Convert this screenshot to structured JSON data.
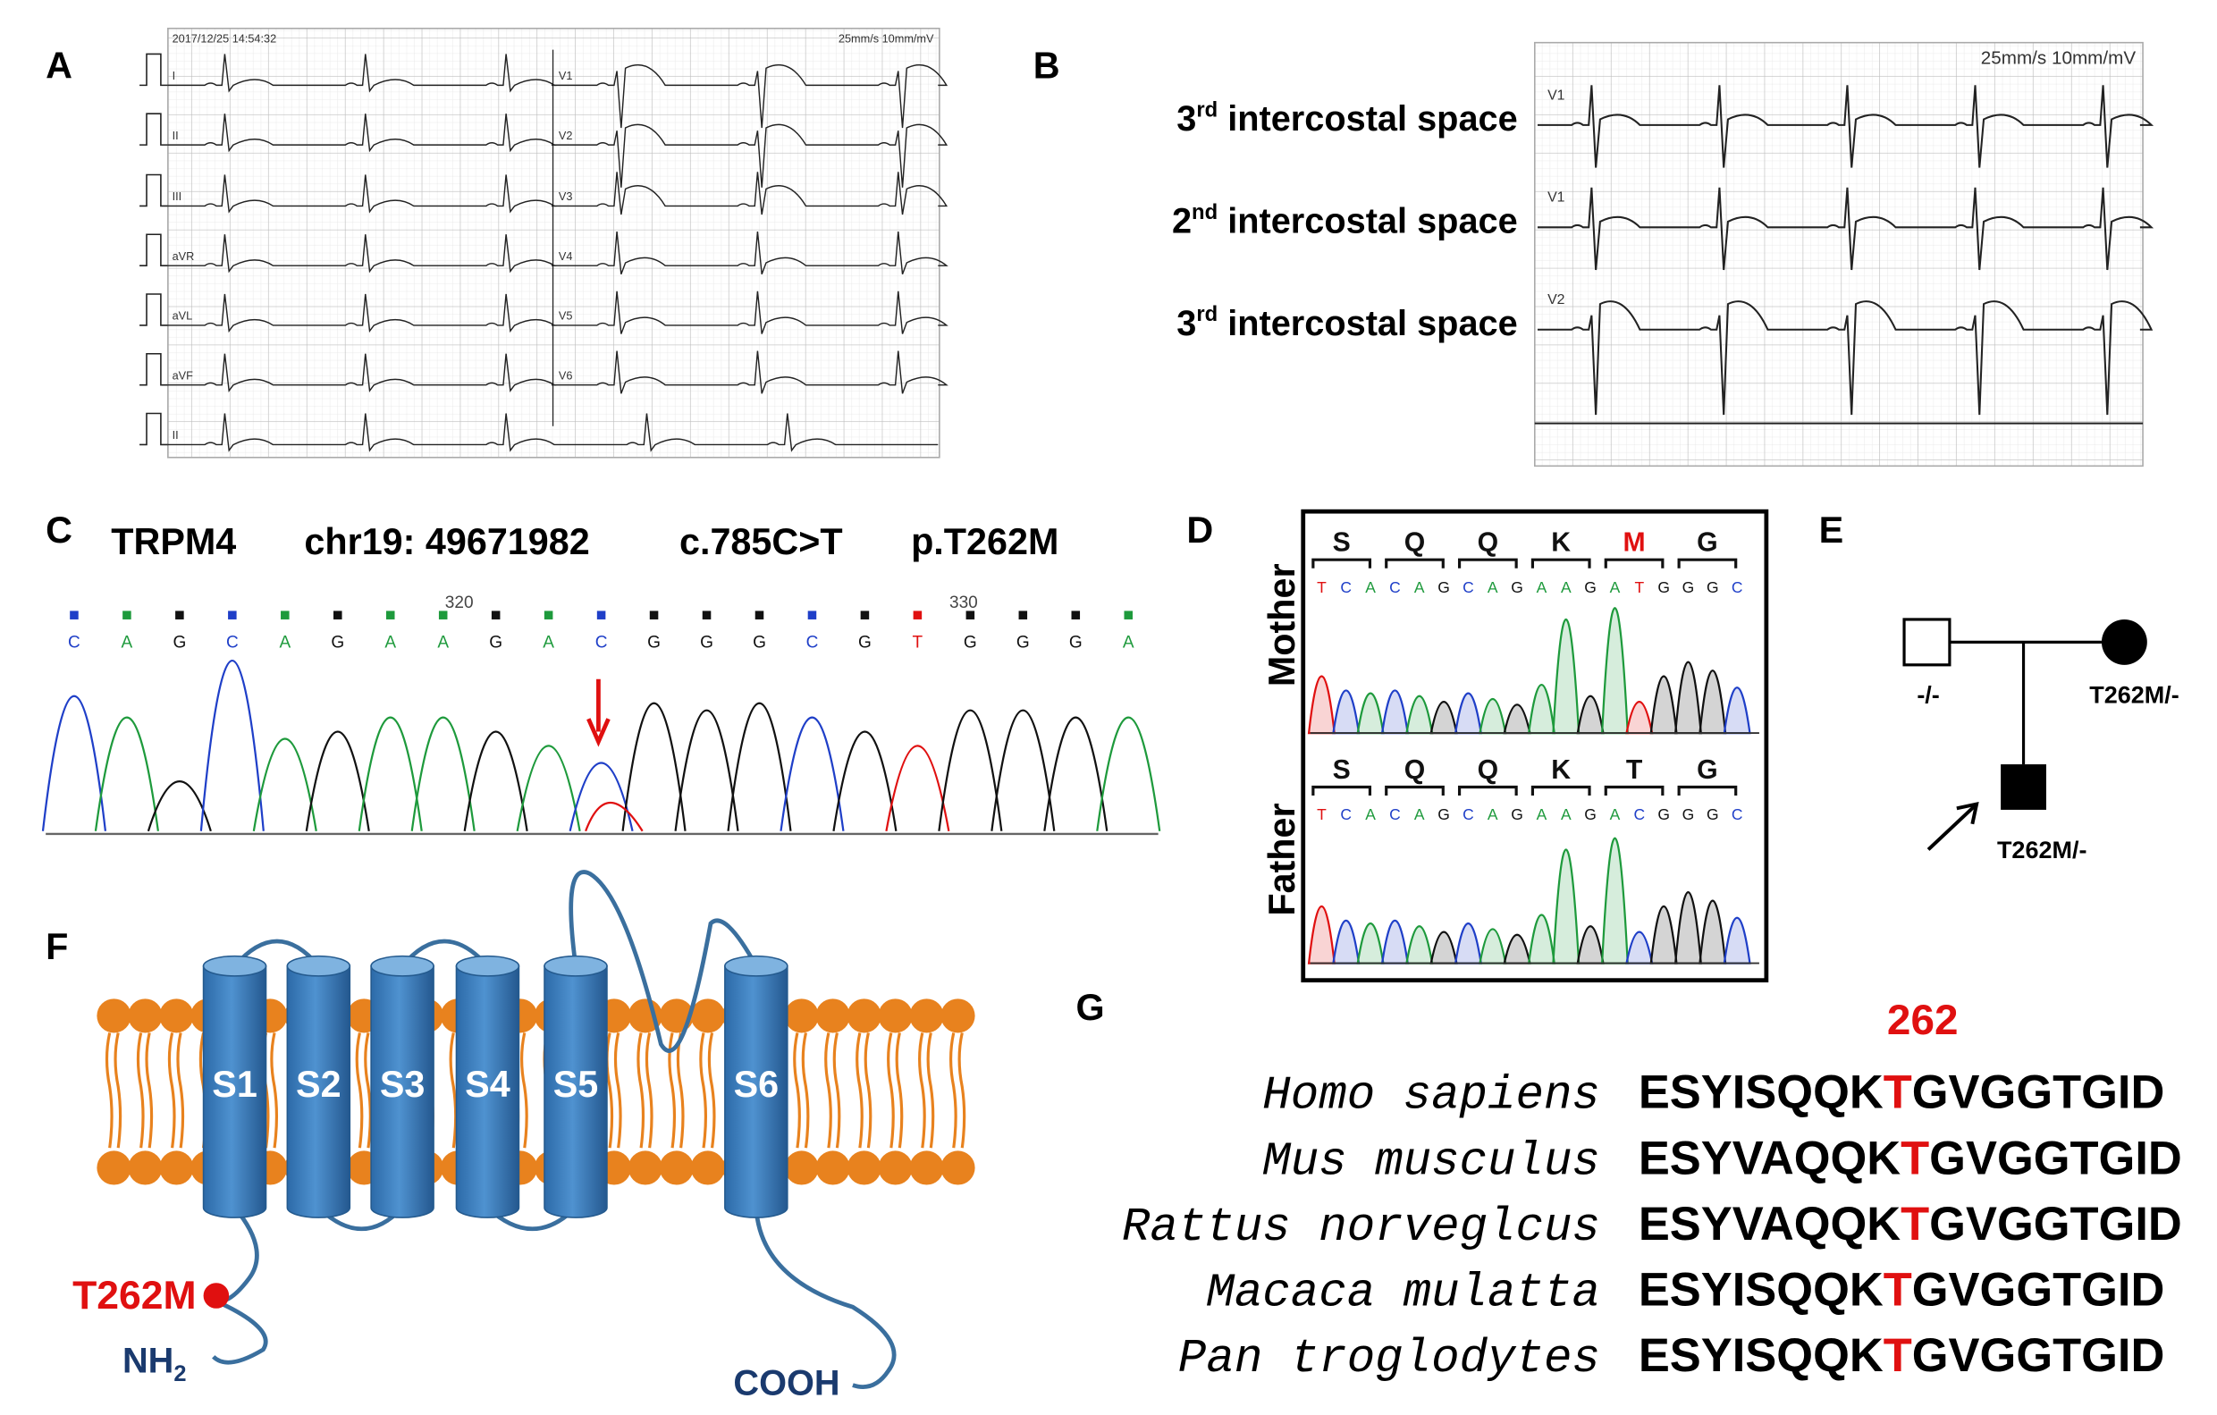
{
  "panels": {
    "A": {
      "label": "A",
      "timestamp": "2017/12/25 14:54:32",
      "speed": "25mm/s 10mm/mV",
      "leads_left": [
        "I",
        "II",
        "III",
        "aVR",
        "aVL",
        "aVF",
        "II"
      ],
      "leads_right": [
        "V1",
        "V2",
        "V3",
        "V4",
        "V5",
        "V6"
      ]
    },
    "B": {
      "label": "B",
      "speed": "25mm/s 10mm/mV",
      "rows": [
        {
          "number": "3",
          "suffix": "rd",
          "text": "intercostal space",
          "lead": "V1"
        },
        {
          "number": "2",
          "suffix": "nd",
          "text": "intercostal space",
          "lead": "V1"
        },
        {
          "number": "3",
          "suffix": "rd",
          "text": "intercostal space",
          "lead": "V2"
        }
      ]
    },
    "C": {
      "label": "C",
      "gene": "TRPM4",
      "locus": "chr19: 49671982",
      "cdna": "c.785C>T",
      "protein": "p.T262M",
      "bases": [
        "C",
        "A",
        "G",
        "C",
        "A",
        "G",
        "A",
        "A",
        "G",
        "A",
        "C",
        "G",
        "G",
        "G",
        "C",
        "G",
        "T",
        "G",
        "G",
        "G",
        "A"
      ],
      "positions": [
        "320",
        "330"
      ]
    },
    "D": {
      "label": "D",
      "rows": [
        {
          "name": "Mother",
          "amino_acids": [
            "S",
            "Q",
            "Q",
            "K",
            "M",
            "G"
          ],
          "bases": [
            "T",
            "C",
            "A",
            "C",
            "A",
            "G",
            "C",
            "A",
            "G",
            "A",
            "A",
            "G",
            "A",
            "T",
            "G",
            "G",
            "G",
            "C"
          ]
        },
        {
          "name": "Father",
          "amino_acids": [
            "S",
            "Q",
            "Q",
            "K",
            "T",
            "G"
          ],
          "bases": [
            "T",
            "C",
            "A",
            "C",
            "A",
            "G",
            "C",
            "A",
            "G",
            "A",
            "A",
            "G",
            "A",
            "C",
            "G",
            "G",
            "G",
            "C"
          ]
        }
      ]
    },
    "E": {
      "label": "E",
      "father": "-/-",
      "mother": "T262M/-",
      "proband": "T262M/-"
    },
    "F": {
      "label": "F",
      "segments": [
        "S1",
        "S2",
        "S3",
        "S4",
        "S5",
        "S6"
      ],
      "mutation": "T262M",
      "n_terminus": "NH",
      "n_subscript": "2",
      "c_terminus": "COOH"
    },
    "G": {
      "label": "G",
      "position": "262",
      "rows": [
        {
          "species": "Homo sapiens",
          "before": "ESYISQQK",
          "residue": "T",
          "after": "GVGGTGID"
        },
        {
          "species": "Mus musculus",
          "before": "ESYVAQQK",
          "residue": "T",
          "after": "GVGGTGID"
        },
        {
          "species": "Rattus norveglcus",
          "before": "ESYVAQQK",
          "residue": "T",
          "after": "GVGGTGID"
        },
        {
          "species": "Macaca mulatta",
          "before": "ESYISQQK",
          "residue": "T",
          "after": "GVGGTGID"
        },
        {
          "species": "Pan troglodytes",
          "before": "ESYISQQK",
          "residue": "T",
          "after": "GVGGTGID"
        }
      ]
    }
  }
}
